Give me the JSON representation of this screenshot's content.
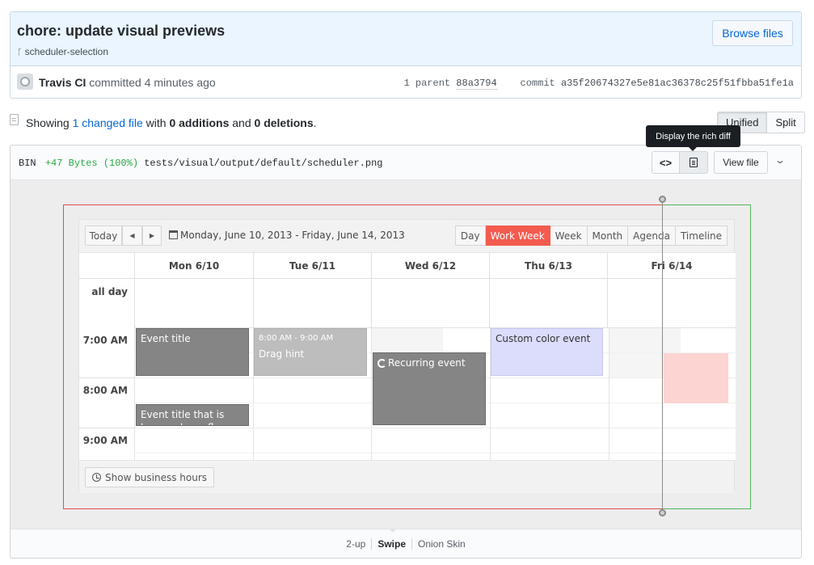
{
  "commit": {
    "title": "chore: update visual previews",
    "branch": "scheduler-selection",
    "browse_label": "Browse files",
    "author": "Travis CI",
    "committed_text": "committed",
    "time_ago": "4 minutes ago",
    "parent_label": "1 parent",
    "parent_sha": "88a3794",
    "commit_label": "commit",
    "commit_sha": "a35f20674327e5e81ac36378c25f51fbba51fe1a"
  },
  "summary": {
    "showing": "Showing",
    "changed_files": "1 changed file",
    "with": "with",
    "additions": "0 additions",
    "and": "and",
    "deletions": "0 deletions",
    "period": "."
  },
  "view_toggle": {
    "unified": "Unified",
    "split": "Split"
  },
  "tooltip": "Display the rich diff",
  "file": {
    "type": "BIN",
    "size_change": "+47 Bytes (100%)",
    "path": "tests/visual/output/default/scheduler.png",
    "code_toggle_glyph": "<>",
    "view_file": "View file",
    "expand_glyph": "⌄"
  },
  "scheduler": {
    "today": "Today",
    "prev": "◀",
    "next": "▶",
    "date_range": "Monday, June 10, 2013 - Friday, June 14, 2013",
    "views": [
      "Day",
      "Work Week",
      "Week",
      "Month",
      "Agenda",
      "Timeline"
    ],
    "active_view": "Work Week",
    "days": [
      "Mon 6/10",
      "Tue 6/11",
      "Wed 6/12",
      "Thu 6/13",
      "Fri 6/14"
    ],
    "all_day": "all day",
    "times": [
      "7:00 AM",
      "8:00 AM",
      "9:00 AM"
    ],
    "events": {
      "title": "Event title",
      "drag_time": "8:00 AM - 9:00 AM",
      "drag_hint": "Drag hint",
      "recurring": "Recurring event",
      "custom": "Custom color event",
      "long": "Event title that is long and overflows, testing"
    },
    "business_hours": "Show business hours"
  },
  "modes": [
    "2-up",
    "Swipe",
    "Onion Skin"
  ],
  "active_mode": "Swipe",
  "colors": {
    "accent_blue": "#0366d6",
    "additions_green": "#28a745",
    "active_view_red": "#f35b4f",
    "custom_event": "#dcdcfc"
  }
}
